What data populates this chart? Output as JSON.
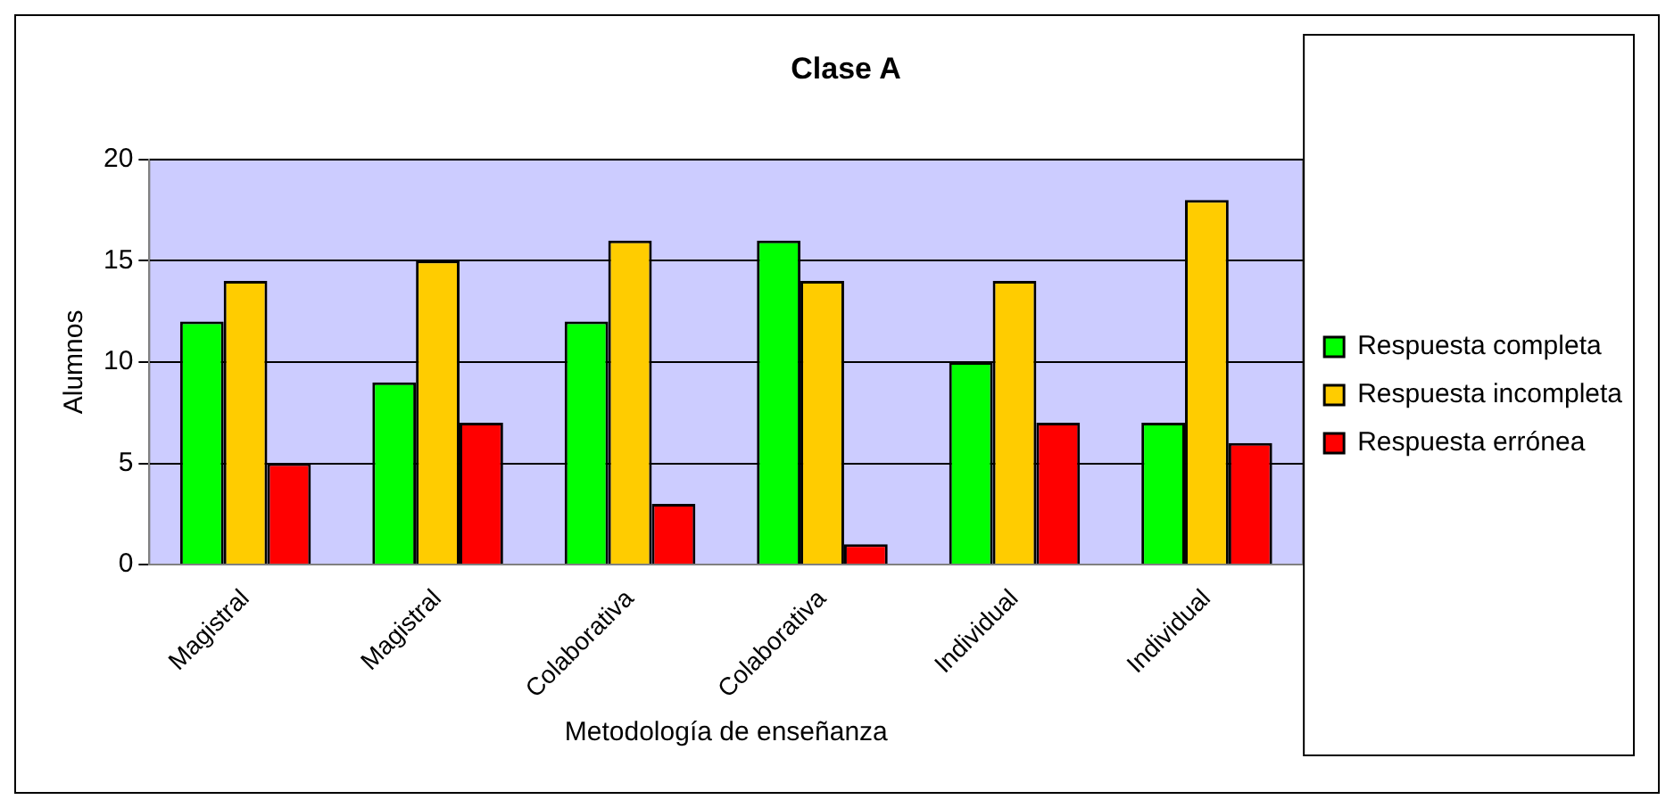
{
  "chart_data": {
    "type": "bar",
    "title": "Clase A",
    "xlabel": "Metodología de enseñanza",
    "ylabel": "Alumnos",
    "categories": [
      "Magistral",
      "Magistral",
      "Colaborativa",
      "Colaborativa",
      "Individual",
      "Individual"
    ],
    "series": [
      {
        "name": "Respuesta completa",
        "color": "#00ff00",
        "values": [
          12,
          9,
          12,
          16,
          10,
          7
        ]
      },
      {
        "name": "Respuesta incompleta",
        "color": "#ffcc00",
        "values": [
          14,
          15,
          16,
          14,
          14,
          18
        ]
      },
      {
        "name": "Respuesta errónea",
        "color": "#ff0000",
        "values": [
          5,
          7,
          3,
          1,
          7,
          6
        ]
      }
    ],
    "ylim": [
      0,
      20
    ],
    "yticks": [
      0,
      5,
      10,
      15,
      20
    ],
    "grid": "y",
    "legend": "right"
  }
}
